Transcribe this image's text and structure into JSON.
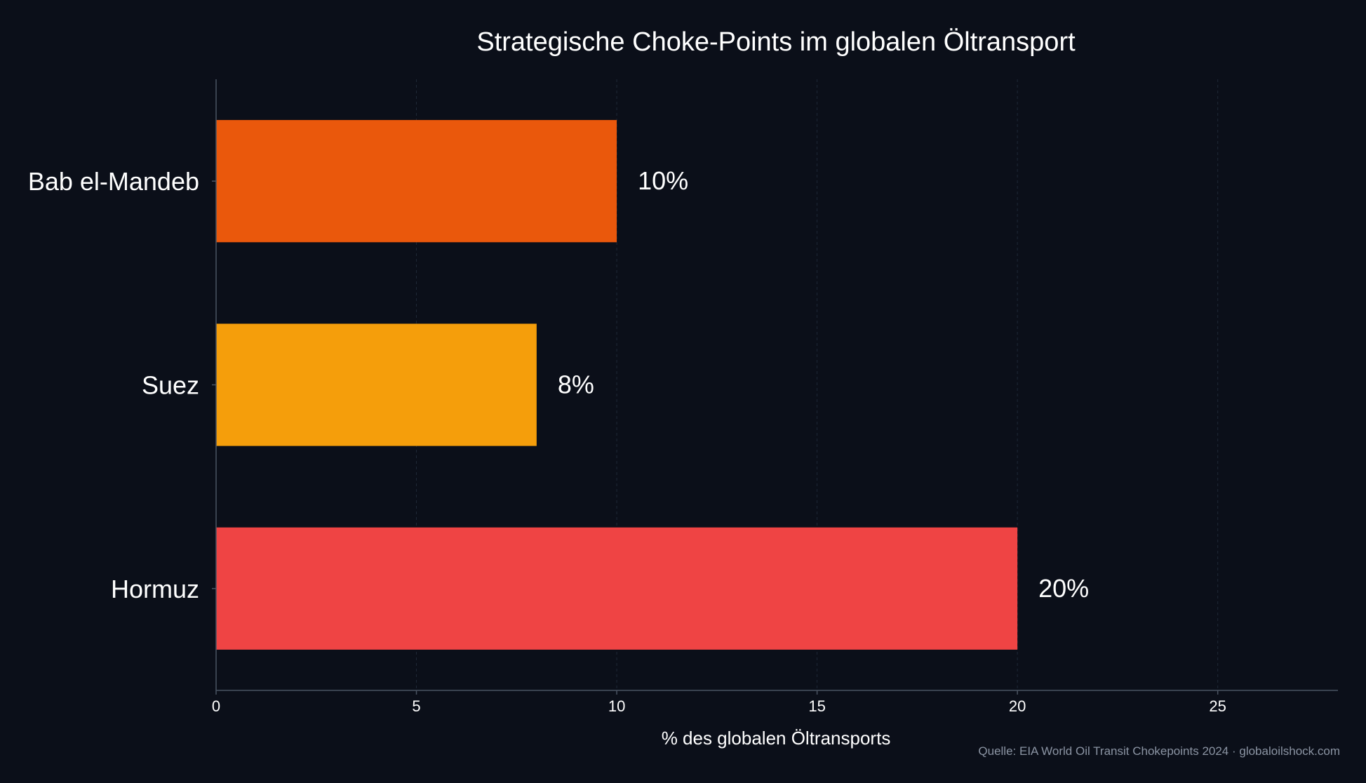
{
  "chart_data": {
    "type": "bar",
    "orientation": "horizontal",
    "title": "Strategische Choke-Points im globalen Öltransport",
    "xlabel": "% des globalen Öltransports",
    "ylabel": "",
    "categories": [
      "Bab el-Mandeb",
      "Suez",
      "Hormuz"
    ],
    "values": [
      10,
      8,
      20
    ],
    "value_labels": [
      "10%",
      "8%",
      "20%"
    ],
    "bar_colors": [
      "#ea580c",
      "#f59e0b",
      "#ef4444"
    ],
    "xlim": [
      0,
      28
    ],
    "xticks": [
      0,
      5,
      10,
      15,
      20,
      25
    ],
    "grid": "vertical dashed",
    "source": "Quelle: EIA World Oil Transit Chokepoints 2024 · globaloilshock.com"
  },
  "colors": {
    "background": "#0b0f19",
    "text": "#ffffff",
    "axis": "#4b5563",
    "grid": "#1f2937",
    "source_text": "#8b94a3"
  }
}
